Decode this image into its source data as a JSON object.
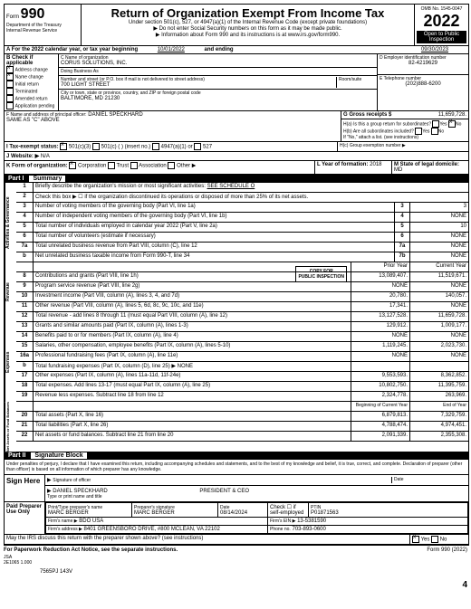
{
  "header": {
    "form_label": "Form",
    "form_num": "990",
    "dept": "Department of the Treasury",
    "irs": "Internal Revenue Service",
    "title": "Return of Organization Exempt From Income Tax",
    "sub1": "Under section 501(c), 527, or 4947(a)(1) of the Internal Revenue Code (except private foundations)",
    "sub2": "▶ Do not enter Social Security numbers on this form as it may be made public.",
    "sub3": "▶ Information about Form 990 and its instructions is at www.irs.gov/form990.",
    "omb": "OMB No. 1545-0047",
    "year": "2022",
    "open": "Open to Public",
    "inspection": "Inspection"
  },
  "sectionA": {
    "label": "A For the 2022 calendar year, or tax year beginning",
    "begin": "10/01/2022",
    "and_ending": "and ending",
    "end": "09/30/2023"
  },
  "sectionB": {
    "label": "B Check if applicable",
    "address": "Address change",
    "name_change": "Name change",
    "initial": "Initial return",
    "terminated": "Terminated",
    "amended": "Amended return",
    "application": "Application pending"
  },
  "sectionC": {
    "name_label": "C Name of organization",
    "name": "CORUS SOLUTIONS, INC.",
    "dba_label": "Doing Business As",
    "street_label": "Number and street (or P.O. box if mail is not delivered to street address)",
    "street": "700 LIGHT STREET",
    "room_label": "Room/suite",
    "city_label": "City or town, state or province, country, and ZIP or foreign postal code",
    "city": "BALTIMORE, MD 21230"
  },
  "sectionD": {
    "label": "D Employer identification number",
    "ein": "82-4219629"
  },
  "sectionE": {
    "label": "E Telephone number",
    "phone": "(202)888-6200"
  },
  "sectionF": {
    "label": "F Name and address of principal officer:",
    "name": "DANIEL SPECKHARD",
    "same": "SAME AS \"C\" ABOVE"
  },
  "sectionG": {
    "label": "G Gross receipts $",
    "amount": "11,659,728."
  },
  "sectionH": {
    "h1a": "H(a) Is this a group return for subordinates?",
    "h1b": "H(b) Are all subordinates included?",
    "note": "If \"No,\" attach a list. (see instructions)",
    "hc": "H(c) Group exemption number ▶",
    "yes": "Yes",
    "no": "No"
  },
  "sectionI": {
    "label": "I Tax-exempt status:",
    "s501c3": "501(c)(3)",
    "s501c": "501(c)",
    "insert": "(insert no.)",
    "s4947": "4947(a)(1) or",
    "s527": "527"
  },
  "sectionJ": {
    "label": "J Website: ▶",
    "val": "N/A"
  },
  "sectionK": {
    "label": "K Form of organization:",
    "corp": "Corporation",
    "trust": "Trust",
    "assoc": "Association",
    "other": "Other ▶"
  },
  "sectionL": {
    "label": "L Year of formation:",
    "val": "2018"
  },
  "sectionM": {
    "label": "M State of legal domicile:",
    "val": "MD"
  },
  "part1": {
    "header": "Part I",
    "title": "Summary"
  },
  "governance": {
    "label": "Activities & Governance",
    "lines": [
      {
        "n": "1",
        "text": "Briefly describe the organization's mission or most significant activities:",
        "val": "SEE SCHEDULE O"
      },
      {
        "n": "2",
        "text": "Check this box ▶ ☐ if the organization discontinued its operations or disposed of more than 25% of its net assets."
      },
      {
        "n": "3",
        "text": "Number of voting members of the governing body (Part VI, line 1a)",
        "box": "3",
        "val": "3"
      },
      {
        "n": "4",
        "text": "Number of independent voting members of the governing body (Part VI, line 1b)",
        "box": "4",
        "val": "NONE"
      },
      {
        "n": "5",
        "text": "Total number of individuals employed in calendar year 2022 (Part V, line 2a)",
        "box": "5",
        "val": "10"
      },
      {
        "n": "6",
        "text": "Total number of volunteers (estimate if necessary)",
        "box": "6",
        "val": "NONE"
      },
      {
        "n": "7a",
        "text": "Total unrelated business revenue from Part VIII, column (C), line 12",
        "box": "7a",
        "val": "NONE"
      },
      {
        "n": "b",
        "text": "Net unrelated business taxable income from Form 990-T, line 34",
        "box": "7b",
        "val": "NONE"
      }
    ]
  },
  "revenue": {
    "label": "Revenue",
    "prior": "Prior Year",
    "current": "Current Year",
    "lines": [
      {
        "n": "8",
        "text": "Contributions and grants (Part VIII, line 1h)",
        "p": "13,089,407.",
        "c": "11,519,671."
      },
      {
        "n": "9",
        "text": "Program service revenue (Part VIII, line 2g)",
        "p": "NONE",
        "c": "NONE"
      },
      {
        "n": "10",
        "text": "Investment income (Part VIII, column (A), lines 3, 4, and 7d)",
        "p": "20,780.",
        "c": "140,057."
      },
      {
        "n": "11",
        "text": "Other revenue (Part VIII, column (A), lines 5, 6d, 8c, 9c, 10c, and 11e)",
        "p": "17,341.",
        "c": "NONE"
      },
      {
        "n": "12",
        "text": "Total revenue - add lines 8 through 11 (must equal Part VIII, column (A), line 12)",
        "p": "13,127,528.",
        "c": "11,659,728."
      }
    ],
    "copy1": "COPY FOR",
    "copy2": "PUBLIC INSPECTION"
  },
  "expenses": {
    "label": "Expenses",
    "lines": [
      {
        "n": "13",
        "text": "Grants and similar amounts paid (Part IX, column (A), lines 1-3)",
        "p": "129,912.",
        "c": "1,009,177."
      },
      {
        "n": "14",
        "text": "Benefits paid to or for members (Part IX, column (A), line 4)",
        "p": "NONE",
        "c": "NONE"
      },
      {
        "n": "15",
        "text": "Salaries, other compensation, employee benefits (Part IX, column (A), lines 5-10)",
        "p": "1,119,245.",
        "c": "2,023,730."
      },
      {
        "n": "16a",
        "text": "Professional fundraising fees (Part IX, column (A), line 11e)",
        "p": "NONE",
        "c": "NONE"
      },
      {
        "n": "b",
        "text": "Total fundraising expenses (Part IX, column (D), line 25) ▶          NONE",
        "p": "",
        "c": ""
      },
      {
        "n": "17",
        "text": "Other expenses (Part IX, column (A), lines 11a-11d, 11f-24e)",
        "p": "9,553,593.",
        "c": "8,362,852."
      },
      {
        "n": "18",
        "text": "Total expenses. Add lines 13-17 (must equal Part IX, column (A), line 25)",
        "p": "10,802,750.",
        "c": "11,395,759."
      },
      {
        "n": "19",
        "text": "Revenue less expenses. Subtract line 18 from line 12",
        "p": "2,324,778.",
        "c": "263,969."
      }
    ]
  },
  "netassets": {
    "label": "Net Assets or Fund Balances",
    "begin": "Beginning of Current Year",
    "end": "End of Year",
    "lines": [
      {
        "n": "20",
        "text": "Total assets (Part X, line 16)",
        "p": "6,879,813.",
        "c": "7,329,759."
      },
      {
        "n": "21",
        "text": "Total liabilities (Part X, line 26)",
        "p": "4,788,474.",
        "c": "4,974,451."
      },
      {
        "n": "22",
        "text": "Net assets or fund balances. Subtract line 21 from line 20",
        "p": "2,091,339.",
        "c": "2,355,308."
      }
    ]
  },
  "part2": {
    "header": "Part II",
    "title": "Signature Block",
    "penalty": "Under penalties of perjury, I declare that I have examined this return, including accompanying schedules and statements, and to the best of my knowledge and belief, it is true, correct, and complete. Declaration of preparer (other than officer) is based on all information of which preparer has any knowledge."
  },
  "sign": {
    "here": "Sign Here",
    "sig_label": "Signature of officer",
    "date": "Date",
    "name": "DANIEL SPECKHARD",
    "title": "PRESIDENT & CEO",
    "type_label": "Type or print name and title"
  },
  "paid": {
    "label": "Paid Preparer Use Only",
    "print_label": "Print/Type preparer's name",
    "name": "MARC BERGER",
    "sig_label": "Preparer's signature",
    "sig": "MARC BERGER",
    "date_label": "Date",
    "date": "08/14/2024",
    "check_label": "Check ☐ if self-employed",
    "ptin_label": "PTIN",
    "ptin": "P01871563",
    "firm_label": "Firm's name ▶",
    "firm": "BDO USA",
    "ein_label": "Firm's EIN ▶",
    "ein": "13-5381590",
    "addr_label": "Firm's address ▶",
    "addr": "8401 GREENSBORO DRIVE, #800 MCLEAN, VA 22102",
    "phone_label": "Phone no.",
    "phone": "703-893-0600"
  },
  "bottom": {
    "discuss": "May the IRS discuss this return with the preparer shown above? (see instructions)",
    "yes": "Yes",
    "no": "No",
    "pra": "For Paperwork Reduction Act Notice, see the separate instructions.",
    "form": "Form 990 (2022)"
  },
  "footer": {
    "jsa": "JSA",
    "code1": "2E1065 1.000",
    "code2": "7565PJ 143V",
    "page": "4"
  }
}
